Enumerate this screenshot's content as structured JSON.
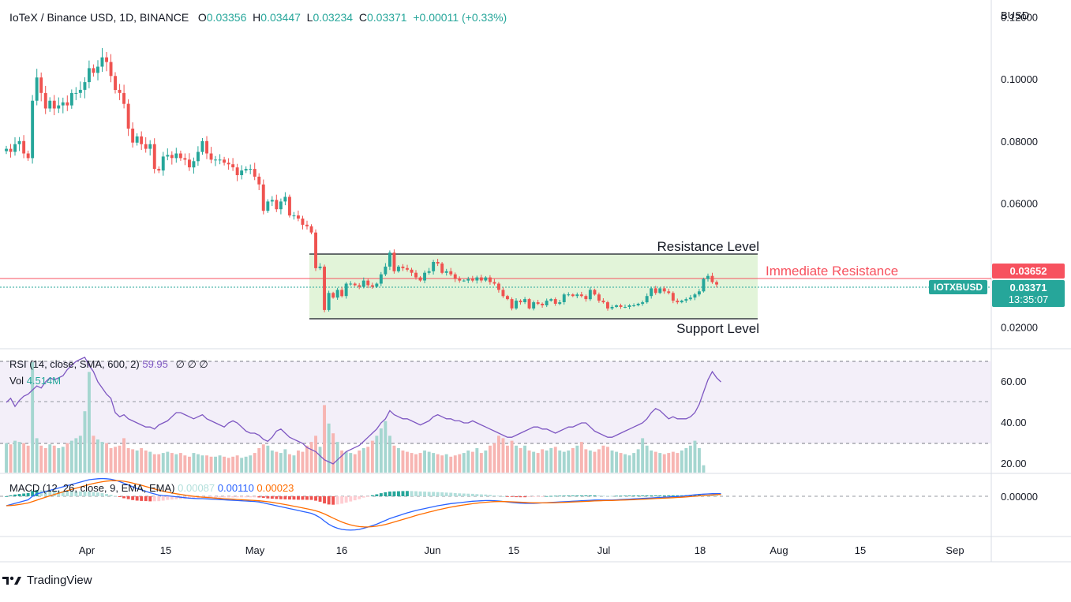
{
  "header": {
    "pair": "IoTeX / Binance USD, 1D, BINANCE",
    "o_label": "O",
    "o_value": "0.03356",
    "h_label": "H",
    "h_value": "0.03447",
    "l_label": "L",
    "l_value": "0.03234",
    "c_label": "C",
    "c_value": "0.03371",
    "change": "+0.00011 (+0.33%)"
  },
  "currency": "BUSD",
  "annotations": {
    "resistance": "Resistance Level",
    "immediate_resistance": "Immediate Resistance",
    "support": "Support Level"
  },
  "price_tags": {
    "immediate_resistance_value": "0.03652",
    "symbol": "IOTXBUSD",
    "last_price": "0.03371",
    "countdown": "13:35:07"
  },
  "rsi_panel": {
    "label": "RSI (14, close, SMA, 600, 2)",
    "value": "59.95",
    "extra": "∅ ∅ ∅",
    "ticks": [
      "60.00",
      "40.00",
      "20.00"
    ]
  },
  "vol_panel": {
    "label": "Vol",
    "value": "4.514M"
  },
  "macd_panel": {
    "label": "MACD (12, 26, close, 9, EMA, EMA)",
    "hist": "0.00087",
    "macd": "0.00110",
    "signal": "0.00023",
    "ticks": [
      "0.00000"
    ]
  },
  "footer": {
    "brand": "TradingView"
  },
  "colors": {
    "up": "#26a69a",
    "down": "#ef5350",
    "resistance_line": "#f7525f",
    "range_fill": "#e3f5dc",
    "rsi": "#7e57c2",
    "macd": "#2962ff",
    "signal": "#ff6d00"
  },
  "chart_data": {
    "type": "candlestick",
    "x_ticks": [
      "Apr",
      "15",
      "May",
      "16",
      "Jun",
      "15",
      "Jul",
      "18",
      "Aug",
      "15",
      "Sep"
    ],
    "y_ticks": [
      "0.12000",
      "0.10000",
      "0.08000",
      "0.06000",
      "0.02000"
    ],
    "ylim": [
      0.013,
      0.1255
    ],
    "levels": {
      "resistance": 0.0455,
      "immediate_resistance": 0.03652,
      "support": 0.024,
      "last": 0.03371
    },
    "closes": [
      0.0775,
      0.0765,
      0.079,
      0.08,
      0.076,
      0.0745,
      0.093,
      0.1005,
      0.0955,
      0.0905,
      0.093,
      0.0905,
      0.0915,
      0.0925,
      0.0915,
      0.0955,
      0.0955,
      0.0965,
      0.099,
      0.1035,
      0.102,
      0.104,
      0.107,
      0.1055,
      0.101,
      0.0965,
      0.0955,
      0.092,
      0.084,
      0.0795,
      0.0815,
      0.079,
      0.0775,
      0.079,
      0.071,
      0.0705,
      0.075,
      0.0755,
      0.0745,
      0.076,
      0.0745,
      0.074,
      0.0715,
      0.0735,
      0.0765,
      0.08,
      0.076,
      0.074,
      0.074,
      0.074,
      0.073,
      0.0725,
      0.0715,
      0.069,
      0.0705,
      0.071,
      0.071,
      0.0685,
      0.066,
      0.0575,
      0.0605,
      0.061,
      0.058,
      0.0605,
      0.062,
      0.056,
      0.056,
      0.055,
      0.053,
      0.0525,
      0.0505,
      0.039,
      0.0395,
      0.0255,
      0.031,
      0.0295,
      0.032,
      0.03,
      0.034,
      0.034,
      0.0335,
      0.033,
      0.035,
      0.0335,
      0.033,
      0.034,
      0.037,
      0.0395,
      0.044,
      0.038,
      0.0395,
      0.039,
      0.0385,
      0.0375,
      0.036,
      0.035,
      0.0375,
      0.038,
      0.041,
      0.0405,
      0.0375,
      0.038,
      0.037,
      0.0355,
      0.035,
      0.035,
      0.0355,
      0.035,
      0.036,
      0.035,
      0.036,
      0.0345,
      0.034,
      0.032,
      0.03,
      0.029,
      0.026,
      0.0285,
      0.028,
      0.029,
      0.026,
      0.028,
      0.0275,
      0.027,
      0.0285,
      0.029,
      0.0275,
      0.028,
      0.0305,
      0.0305,
      0.03,
      0.0305,
      0.03,
      0.029,
      0.032,
      0.0305,
      0.0285,
      0.028,
      0.026,
      0.0265,
      0.027,
      0.0265,
      0.0265,
      0.027,
      0.027,
      0.0275,
      0.028,
      0.03,
      0.0325,
      0.031,
      0.0325,
      0.0315,
      0.031,
      0.0285,
      0.028,
      0.0285,
      0.029,
      0.0295,
      0.0305,
      0.0315,
      0.0355,
      0.0365,
      0.0345,
      0.0337
    ],
    "rsi": [
      50,
      52,
      48,
      51,
      53,
      54,
      56,
      58,
      57,
      60,
      62,
      61,
      62,
      63,
      66,
      68,
      70,
      71,
      72,
      68,
      65,
      60,
      57,
      54,
      52,
      45,
      43,
      44,
      42,
      41,
      40,
      39,
      38,
      38,
      37,
      39,
      40,
      41,
      43,
      45,
      45,
      44,
      43,
      42,
      43,
      44,
      42,
      41,
      40,
      39,
      38,
      40,
      41,
      40,
      38,
      36,
      35,
      35,
      34,
      32,
      31,
      33,
      36,
      37,
      35,
      33,
      32,
      31,
      30,
      28,
      27,
      26,
      24,
      22,
      21,
      20,
      22,
      24,
      26,
      27,
      28,
      29,
      31,
      33,
      35,
      37,
      40,
      42,
      46,
      44,
      43,
      42,
      42,
      41,
      40,
      39,
      40,
      41,
      43,
      44,
      43,
      42,
      42,
      41,
      41,
      40,
      40,
      41,
      40,
      39,
      38,
      37,
      36,
      35,
      34,
      33,
      33,
      34,
      35,
      36,
      37,
      38,
      38,
      37,
      37,
      36,
      35,
      36,
      37,
      38,
      38,
      39,
      40,
      40,
      38,
      36,
      35,
      34,
      33,
      33,
      34,
      35,
      36,
      37,
      38,
      39,
      40,
      42,
      45,
      47,
      46,
      44,
      42,
      43,
      42,
      42,
      42,
      43,
      45,
      49,
      55,
      61,
      65,
      62,
      59.95
    ],
    "vol": [
      24,
      23,
      26,
      25,
      24,
      22,
      90,
      28,
      22,
      20,
      23,
      22,
      20,
      21,
      24,
      26,
      28,
      30,
      50,
      82,
      30,
      27,
      25,
      24,
      20,
      21,
      22,
      28,
      20,
      19,
      18,
      20,
      18,
      17,
      15,
      15,
      16,
      17,
      16,
      15,
      16,
      14,
      13,
      16,
      15,
      14,
      14,
      13,
      13,
      14,
      13,
      12,
      13,
      14,
      12,
      13,
      14,
      16,
      20,
      23,
      22,
      18,
      17,
      16,
      19,
      15,
      14,
      18,
      17,
      22,
      25,
      30,
      21,
      55,
      40,
      32,
      25,
      18,
      17,
      16,
      15,
      18,
      20,
      21,
      26,
      30,
      36,
      42,
      30,
      22,
      20,
      18,
      17,
      16,
      15,
      16,
      18,
      17,
      16,
      15,
      14,
      15,
      13,
      14,
      15,
      16,
      18,
      17,
      20,
      16,
      18,
      22,
      24,
      30,
      28,
      22,
      26,
      22,
      20,
      22,
      18,
      17,
      16,
      19,
      18,
      20,
      21,
      18,
      17,
      18,
      20,
      22,
      25,
      19,
      18,
      17,
      19,
      22,
      21,
      18,
      17,
      16,
      15,
      14,
      16,
      19,
      28,
      22,
      18,
      17,
      16,
      15,
      16,
      17,
      16,
      18,
      20,
      22,
      26,
      20,
      6
    ],
    "macd": [
      -0.004,
      -0.0035,
      -0.003,
      -0.0025,
      -0.002,
      -0.0015,
      0.0,
      0.001,
      0.0015,
      0.002,
      0.0025,
      0.003,
      0.0035,
      0.004,
      0.0045,
      0.005,
      0.0055,
      0.006,
      0.0065,
      0.007,
      0.0072,
      0.0074,
      0.0075,
      0.0074,
      0.0072,
      0.0068,
      0.0062,
      0.0055,
      0.0048,
      0.004,
      0.0033,
      0.0027,
      0.0021,
      0.0015,
      0.001,
      0.0005,
      0.0003,
      0.0002,
      0.0,
      -0.0002,
      -0.0004,
      -0.0006,
      -0.0008,
      -0.0009,
      -0.001,
      -0.001,
      -0.0011,
      -0.0012,
      -0.0013,
      -0.0014,
      -0.0015,
      -0.0016,
      -0.0017,
      -0.0018,
      -0.0019,
      -0.002,
      -0.0021,
      -0.0022,
      -0.0024,
      -0.0028,
      -0.0032,
      -0.0036,
      -0.004,
      -0.0044,
      -0.0048,
      -0.0052,
      -0.0056,
      -0.006,
      -0.0064,
      -0.0068,
      -0.0072,
      -0.008,
      -0.009,
      -0.0105,
      -0.0118,
      -0.0128,
      -0.0135,
      -0.014,
      -0.0142,
      -0.0143,
      -0.0142,
      -0.014,
      -0.0135,
      -0.013,
      -0.0124,
      -0.0118,
      -0.011,
      -0.0102,
      -0.0094,
      -0.0088,
      -0.0082,
      -0.0076,
      -0.007,
      -0.0065,
      -0.006,
      -0.0056,
      -0.0052,
      -0.0048,
      -0.0044,
      -0.004,
      -0.0037,
      -0.0034,
      -0.0031,
      -0.0029,
      -0.0027,
      -0.0025,
      -0.0023,
      -0.0021,
      -0.002,
      -0.0019,
      -0.0018,
      -0.0018,
      -0.0019,
      -0.002,
      -0.0022,
      -0.0024,
      -0.0026,
      -0.0028,
      -0.0029,
      -0.003,
      -0.003,
      -0.003,
      -0.0029,
      -0.0028,
      -0.0027,
      -0.0026,
      -0.0025,
      -0.0024,
      -0.0023,
      -0.0022,
      -0.0021,
      -0.002,
      -0.0019,
      -0.0018,
      -0.0017,
      -0.0016,
      -0.0016,
      -0.0016,
      -0.0016,
      -0.0016,
      -0.0015,
      -0.0014,
      -0.0013,
      -0.0012,
      -0.0011,
      -0.001,
      -0.0009,
      -0.0008,
      -0.0007,
      -0.0006,
      -0.0005,
      -0.0004,
      -0.0003,
      -0.0002,
      -0.0001,
      0.0,
      0.0002,
      0.0004,
      0.0006,
      0.0008,
      0.0009,
      0.001,
      0.0011,
      0.0011,
      0.0011
    ]
  }
}
